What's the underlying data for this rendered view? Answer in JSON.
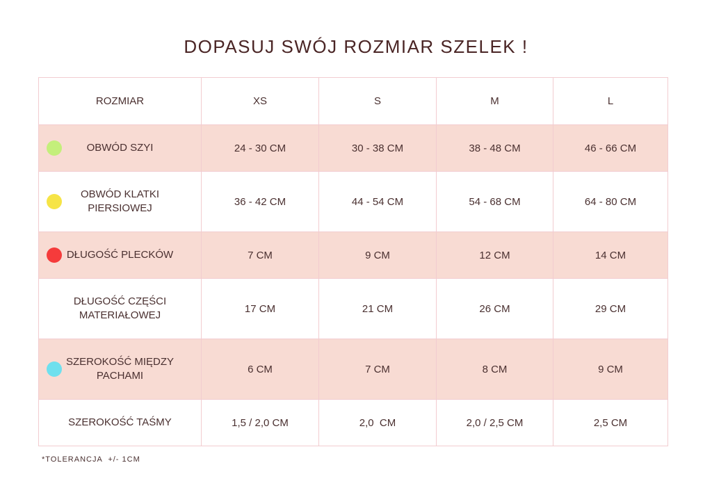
{
  "title": "DOPASUJ SWÓJ ROZMIAR SZELEK !",
  "table": {
    "header": [
      "ROZMIAR",
      "XS",
      "S",
      "M",
      "L"
    ],
    "rows": [
      [
        "OBWÓD SZYI",
        "24 - 30 CM",
        "30 - 38 CM",
        "38 - 48 CM",
        "46 - 66 CM"
      ],
      [
        "OBWÓD KLATKI PIERSIOWEJ",
        "36 - 42 CM",
        "44 - 54 CM",
        "54 - 68 CM",
        "64 - 80 CM"
      ],
      [
        "DŁUGOŚĆ PLECKÓW",
        "7 CM",
        "9 CM",
        "12 CM",
        "14 CM"
      ],
      [
        "DŁUGOŚĆ CZĘŚCI MATERIAŁOWEJ",
        "17 CM",
        "21 CM",
        "26 CM",
        "29 CM"
      ],
      [
        "SZEROKOŚĆ MIĘDZY PACHAMI",
        "6 CM",
        "7 CM",
        "8 CM",
        "9 CM"
      ],
      [
        "SZEROKOŚĆ TAŚMY",
        "1,5 / 2,0 CM",
        "2,0  CM",
        "2,0 / 2,5 CM",
        "2,5 CM"
      ]
    ]
  },
  "footnote": "*TOLERANCJA  +/- 1CM"
}
